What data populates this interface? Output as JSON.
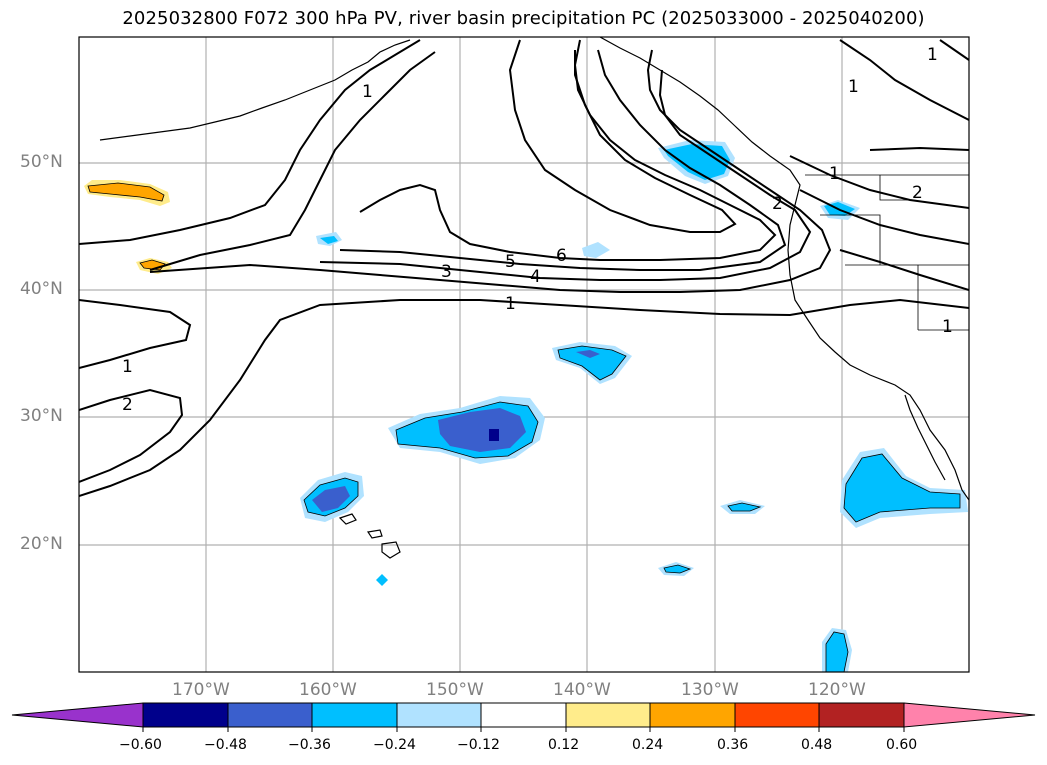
{
  "title": "2025032800 F072 300 hPa PV, river basin precipitation PC (2025033000 - 2025040200)",
  "latitude_labels": [
    "50°N",
    "40°N",
    "30°N",
    "20°N"
  ],
  "longitude_labels": [
    "170°W",
    "160°W",
    "150°W",
    "140°W",
    "130°W",
    "120°W"
  ],
  "contour_labels": [
    "1",
    "1",
    "1",
    "1",
    "1",
    "1",
    "2",
    "2",
    "2",
    "3",
    "4",
    "5",
    "6",
    "1"
  ],
  "colorbar": {
    "tick_labels": [
      "−0.60",
      "−0.48",
      "−0.36",
      "−0.24",
      "−0.12",
      "0.12",
      "0.24",
      "0.36",
      "0.48",
      "0.60"
    ],
    "colors": [
      "#9932cc",
      "#00008b",
      "#3a5fcd",
      "#00bfff",
      "#b0e2ff",
      "#ffffff",
      "#ffec8b",
      "#ffa500",
      "#ff4500",
      "#b22222",
      "#ff82ab"
    ]
  },
  "map": {
    "extent_lon": [
      -180,
      -110
    ],
    "extent_lat": [
      10,
      60
    ],
    "gridlines": true,
    "fields": [
      "300 hPa PV contours",
      "river basin precipitation PC shading"
    ]
  }
}
